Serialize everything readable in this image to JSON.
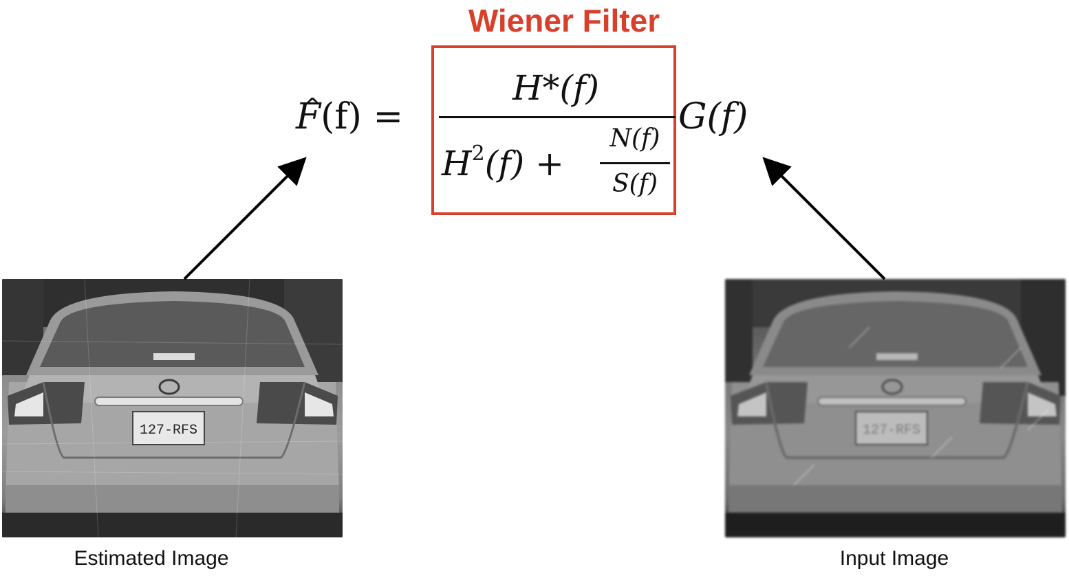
{
  "title": {
    "text": "Wiener Filter",
    "color": "#d8402c"
  },
  "equation": {
    "lhs_symbol": "F",
    "lhs_hat": "^",
    "lhs_arg": "(f) =",
    "numerator": "H*(f)",
    "denominator_term": "H",
    "denominator_exponent": "2",
    "denominator_rest": "(f) +",
    "noise_numerator": "N(f)",
    "noise_denominator": "S(f)",
    "rhs": "G(f)"
  },
  "images": {
    "estimated": {
      "caption": "Estimated Image",
      "plate_text": "127-RFS"
    },
    "input": {
      "caption": "Input Image",
      "plate_text": "127-RFS"
    }
  },
  "colors": {
    "accent": "#d8402c",
    "text": "#111111",
    "arrow": "#000000"
  }
}
